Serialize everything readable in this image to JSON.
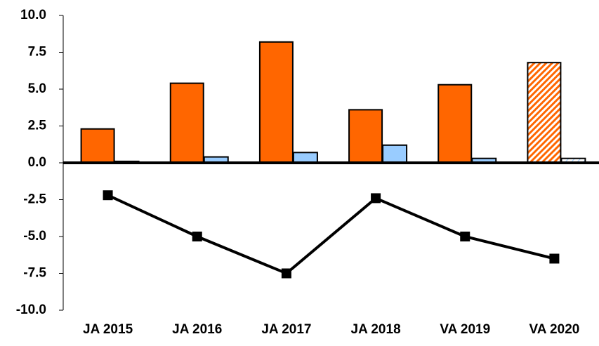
{
  "chart_data": {
    "type": "bar",
    "categories": [
      "JA 2015",
      "JA 2016",
      "JA 2017",
      "JA 2018",
      "VA 2019",
      "VA 2020"
    ],
    "series": [
      {
        "type": "bar",
        "color": "#ff6600",
        "values": [
          2.3,
          5.4,
          8.2,
          3.6,
          5.3,
          6.8
        ],
        "hatched": [
          false,
          false,
          false,
          false,
          false,
          true
        ]
      },
      {
        "type": "bar",
        "color": "#99ccff",
        "values": [
          0.1,
          0.4,
          0.7,
          1.2,
          0.3,
          0.3
        ],
        "hatched": [
          false,
          false,
          false,
          false,
          false,
          true
        ]
      },
      {
        "type": "line",
        "color": "#000000",
        "values": [
          -2.2,
          -5.0,
          -7.5,
          -2.4,
          -5.0,
          -6.5
        ]
      }
    ],
    "ylim": [
      -10,
      10
    ],
    "yticks": [
      {
        "value": -10,
        "label": "-10.0"
      },
      -7.5,
      {
        "value": -5,
        "label": "-5.0"
      },
      -2.5,
      {
        "value": 0,
        "label": "0.0"
      },
      2.5,
      {
        "value": 5,
        "label": "5.0"
      },
      7.5,
      {
        "value": 10,
        "label": "10.0"
      }
    ],
    "grid": false
  }
}
